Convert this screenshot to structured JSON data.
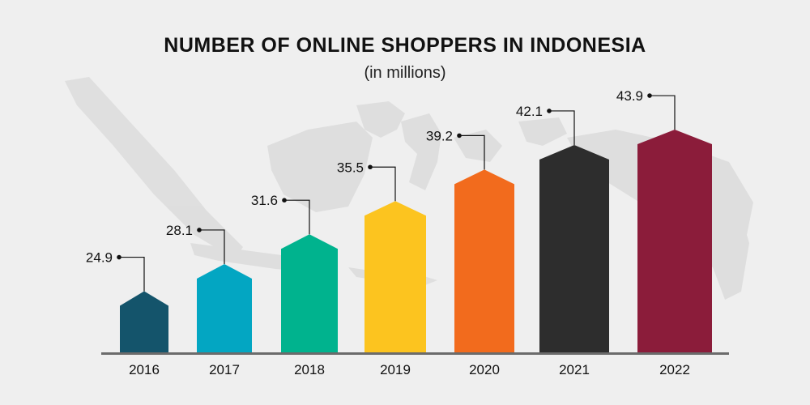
{
  "chart_data": {
    "type": "bar",
    "title": "NUMBER OF ONLINE SHOPPERS IN INDONESIA",
    "subtitle": "(in millions)",
    "categories": [
      "2016",
      "2017",
      "2018",
      "2019",
      "2020",
      "2021",
      "2022"
    ],
    "values": [
      24.9,
      28.1,
      31.6,
      35.5,
      39.2,
      42.1,
      43.9
    ],
    "value_labels": [
      "24.9",
      "28.1",
      "31.6",
      "35.5",
      "39.2",
      "42.1",
      "43.9"
    ],
    "colors": [
      "#14546b",
      "#03a6c2",
      "#00b38e",
      "#fcc41f",
      "#f26b1d",
      "#2d2d2d",
      "#8b1c3a"
    ],
    "xlabel": "",
    "ylabel": "",
    "grid": false,
    "legend": "none",
    "axis_color": "#6b6b6b",
    "background_map_color": "#dcdcdc"
  }
}
